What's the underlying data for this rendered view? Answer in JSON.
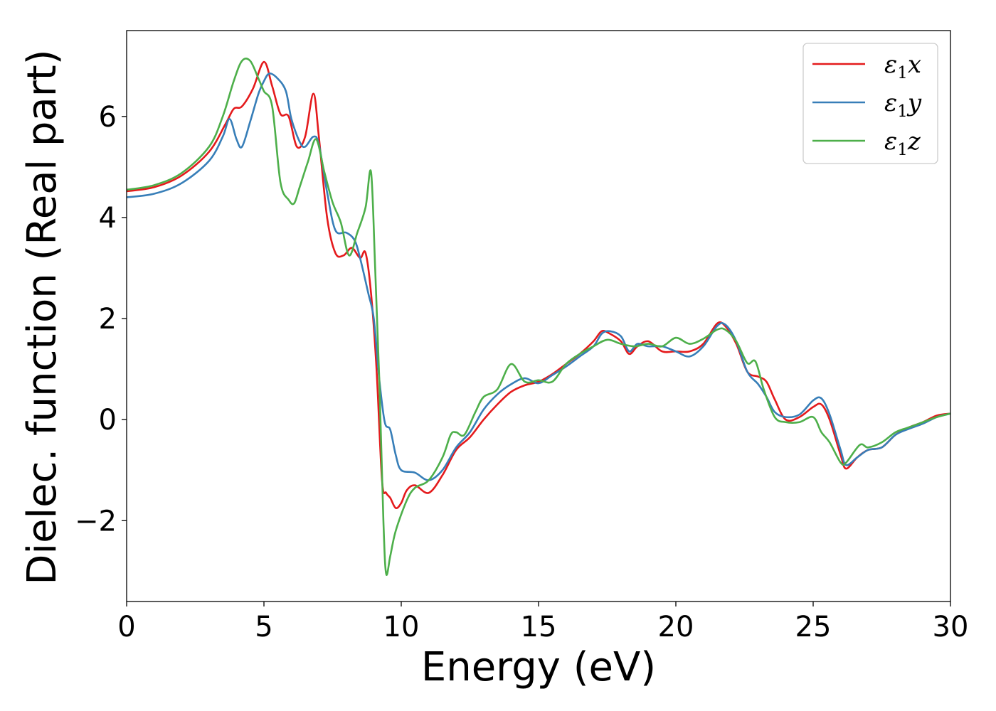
{
  "chart_data": {
    "type": "line",
    "title": "",
    "xlabel": "Energy (eV)",
    "ylabel": "Dielec. function (Real part)",
    "xlim": [
      0,
      30
    ],
    "ylim": [
      -3.6,
      7.7
    ],
    "xticks": [
      0,
      5,
      10,
      15,
      20,
      25,
      30
    ],
    "yticks": [
      -2,
      0,
      2,
      4,
      6
    ],
    "grid": false,
    "legend_position": "top-right",
    "series": [
      {
        "name": "ε₁x",
        "legend_base": "ε",
        "legend_sub": "1",
        "legend_var": "x",
        "color": "#e41a1c",
        "x": [
          0,
          1,
          2,
          3,
          3.6,
          3.9,
          4.2,
          4.6,
          5.0,
          5.3,
          5.6,
          5.9,
          6.2,
          6.5,
          6.8,
          7.0,
          7.3,
          7.6,
          7.9,
          8.2,
          8.5,
          8.7,
          8.9,
          9.1,
          9.3,
          9.45,
          9.6,
          9.8,
          10.0,
          10.2,
          10.5,
          11.0,
          11.5,
          12.0,
          12.5,
          13.0,
          13.5,
          14.0,
          14.5,
          15.0,
          15.5,
          16.0,
          16.5,
          17.0,
          17.3,
          17.6,
          18.0,
          18.3,
          18.6,
          19.0,
          19.5,
          20.0,
          20.5,
          21.0,
          21.5,
          21.8,
          22.2,
          22.6,
          23.0,
          23.3,
          23.6,
          24.0,
          24.5,
          25.0,
          25.3,
          25.6,
          26.0,
          26.2,
          26.6,
          27.0,
          27.5,
          28.0,
          28.5,
          29.0,
          29.5,
          30.0
        ],
        "y": [
          4.52,
          4.6,
          4.83,
          5.3,
          5.85,
          6.15,
          6.2,
          6.55,
          7.08,
          6.6,
          6.05,
          6.0,
          5.4,
          5.6,
          6.45,
          5.6,
          4.0,
          3.3,
          3.25,
          3.4,
          3.2,
          3.3,
          2.5,
          1.0,
          -1.2,
          -1.45,
          -1.55,
          -1.75,
          -1.65,
          -1.4,
          -1.3,
          -1.45,
          -1.1,
          -0.6,
          -0.35,
          0.0,
          0.3,
          0.55,
          0.68,
          0.75,
          0.9,
          1.1,
          1.3,
          1.55,
          1.75,
          1.7,
          1.55,
          1.3,
          1.45,
          1.55,
          1.35,
          1.35,
          1.35,
          1.5,
          1.9,
          1.85,
          1.5,
          0.95,
          0.85,
          0.75,
          0.4,
          0.0,
          0.05,
          0.25,
          0.3,
          0.0,
          -0.7,
          -0.97,
          -0.75,
          -0.6,
          -0.55,
          -0.3,
          -0.15,
          -0.05,
          0.08,
          0.12
        ]
      },
      {
        "name": "ε₁y",
        "legend_base": "ε",
        "legend_sub": "1",
        "legend_var": "y",
        "color": "#377eb8",
        "x": [
          0,
          1,
          2,
          3,
          3.5,
          3.75,
          4.0,
          4.2,
          4.5,
          4.8,
          5.0,
          5.2,
          5.5,
          5.8,
          6.0,
          6.3,
          6.5,
          6.8,
          7.0,
          7.3,
          7.6,
          8.0,
          8.3,
          8.5,
          8.8,
          9.0,
          9.2,
          9.4,
          9.6,
          9.8,
          10.0,
          10.5,
          11.0,
          11.5,
          12.0,
          12.5,
          13.0,
          13.5,
          14.0,
          14.5,
          15.0,
          15.5,
          16.0,
          16.5,
          17.0,
          17.3,
          17.6,
          18.0,
          18.3,
          18.6,
          19.0,
          19.5,
          20.0,
          20.5,
          21.0,
          21.5,
          21.8,
          22.2,
          22.6,
          23.0,
          23.3,
          23.6,
          24.0,
          24.5,
          25.0,
          25.3,
          25.6,
          26.0,
          26.2,
          26.6,
          27.0,
          27.5,
          28.0,
          28.5,
          29.0,
          29.5,
          30.0
        ],
        "y": [
          4.4,
          4.47,
          4.68,
          5.12,
          5.6,
          5.95,
          5.55,
          5.4,
          5.9,
          6.45,
          6.7,
          6.85,
          6.75,
          6.5,
          5.95,
          5.5,
          5.4,
          5.6,
          5.45,
          4.5,
          3.75,
          3.7,
          3.55,
          3.2,
          2.5,
          2.0,
          0.8,
          -0.05,
          -0.2,
          -0.7,
          -1.0,
          -1.05,
          -1.2,
          -1.0,
          -0.55,
          -0.25,
          0.2,
          0.5,
          0.7,
          0.82,
          0.72,
          0.88,
          1.05,
          1.25,
          1.45,
          1.7,
          1.75,
          1.65,
          1.35,
          1.5,
          1.45,
          1.45,
          1.35,
          1.25,
          1.45,
          1.85,
          1.88,
          1.55,
          0.95,
          0.7,
          0.45,
          0.15,
          0.05,
          0.1,
          0.38,
          0.42,
          0.1,
          -0.6,
          -0.9,
          -0.75,
          -0.6,
          -0.55,
          -0.3,
          -0.18,
          -0.08,
          0.05,
          0.12
        ]
      },
      {
        "name": "ε₁z",
        "legend_base": "ε",
        "legend_sub": "1",
        "legend_var": "z",
        "color": "#4daf4a",
        "x": [
          0,
          1,
          2,
          3,
          3.5,
          3.9,
          4.2,
          4.5,
          4.8,
          5.0,
          5.3,
          5.6,
          5.9,
          6.1,
          6.3,
          6.6,
          6.9,
          7.2,
          7.5,
          7.8,
          8.1,
          8.4,
          8.7,
          8.9,
          9.05,
          9.2,
          9.35,
          9.45,
          9.6,
          9.8,
          10.2,
          10.5,
          11.0,
          11.5,
          11.8,
          12.0,
          12.3,
          12.7,
          13.0,
          13.5,
          14.0,
          14.5,
          15.0,
          15.5,
          16.0,
          16.5,
          17.0,
          17.5,
          18.0,
          18.5,
          19.0,
          19.5,
          20.0,
          20.5,
          21.0,
          21.5,
          21.8,
          22.2,
          22.6,
          22.9,
          23.2,
          23.6,
          24.0,
          24.5,
          25.0,
          25.3,
          25.6,
          26.0,
          26.2,
          26.7,
          27.0,
          27.5,
          28.0,
          28.5,
          29.0,
          29.5,
          30.0
        ],
        "y": [
          4.55,
          4.64,
          4.88,
          5.4,
          6.0,
          6.7,
          7.1,
          7.1,
          6.75,
          6.5,
          6.2,
          4.7,
          4.35,
          4.28,
          4.6,
          5.1,
          5.55,
          4.9,
          4.3,
          3.9,
          3.25,
          3.7,
          4.2,
          4.9,
          3.0,
          0.8,
          -2.0,
          -3.05,
          -2.7,
          -2.2,
          -1.6,
          -1.35,
          -1.2,
          -0.75,
          -0.3,
          -0.25,
          -0.3,
          0.15,
          0.45,
          0.6,
          1.1,
          0.75,
          0.78,
          0.75,
          1.1,
          1.3,
          1.45,
          1.58,
          1.5,
          1.45,
          1.5,
          1.45,
          1.62,
          1.5,
          1.6,
          1.78,
          1.78,
          1.55,
          1.12,
          1.15,
          0.6,
          0.05,
          -0.05,
          -0.05,
          0.05,
          -0.25,
          -0.45,
          -0.85,
          -0.85,
          -0.5,
          -0.55,
          -0.45,
          -0.25,
          -0.15,
          -0.05,
          0.05,
          0.12
        ]
      }
    ]
  }
}
